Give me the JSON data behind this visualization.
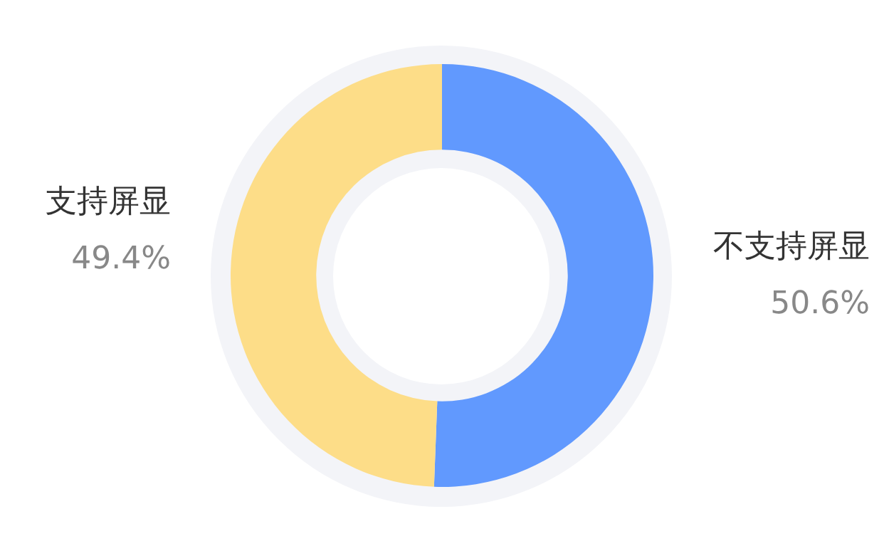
{
  "chart_data": {
    "type": "donut",
    "categories": [
      "不支持屏显",
      "支持屏显"
    ],
    "values": [
      50.6,
      49.4
    ],
    "value_labels": [
      "50.6%",
      "49.4%"
    ],
    "colors": [
      "#6199fe",
      "#fddd88"
    ],
    "legend": false
  }
}
